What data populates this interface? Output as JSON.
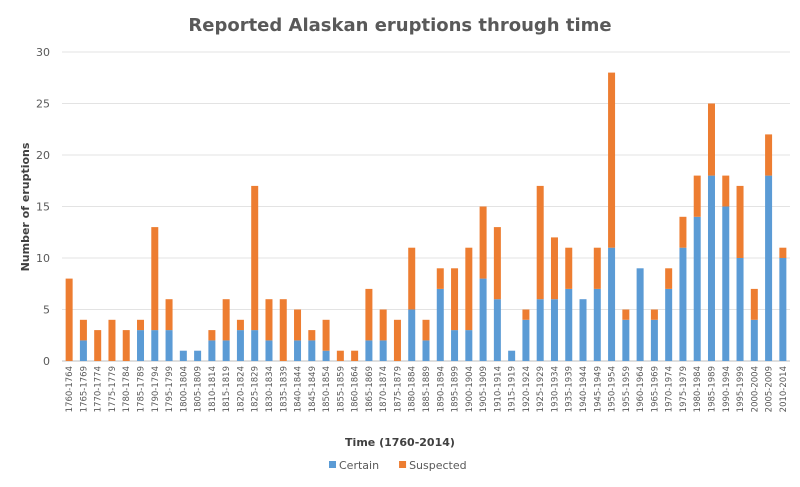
{
  "chart_data": {
    "type": "bar",
    "stacked": true,
    "title": "Reported Alaskan eruptions through time",
    "xlabel": "Time (1760-2014)",
    "ylabel": "Number of eruptions",
    "ylim": [
      0,
      30
    ],
    "yticks": [
      0,
      5,
      10,
      15,
      20,
      25,
      30
    ],
    "grid": true,
    "legend": "bottom",
    "categories": [
      "1760-1764",
      "1765-1769",
      "1770-1774",
      "1775-1779",
      "1780-1784",
      "1785-1789",
      "1790-1794",
      "1795-1799",
      "1800-1804",
      "1805-1809",
      "1810-1814",
      "1815-1819",
      "1820-1824",
      "1825-1829",
      "1830-1834",
      "1835-1839",
      "1840-1844",
      "1845-1849",
      "1850-1854",
      "1855-1859",
      "1860-1864",
      "1865-1869",
      "1870-1874",
      "1875-1879",
      "1880-1884",
      "1885-1889",
      "1890-1894",
      "1895-1899",
      "1900-1904",
      "1905-1909",
      "1910-1914",
      "1915-1919",
      "1920-1924",
      "1925-1929",
      "1930-1934",
      "1935-1939",
      "1940-1944",
      "1945-1949",
      "1950-1954",
      "1955-1959",
      "1960-1964",
      "1965-1969",
      "1970-1974",
      "1975-1979",
      "1980-1984",
      "1985-1989",
      "1990-1994",
      "1995-1999",
      "2000-2004",
      "2005-2009",
      "2010-2014"
    ],
    "series": [
      {
        "name": "Certain",
        "color": "#5b9bd5",
        "values": [
          0,
          2,
          0,
          0,
          0,
          3,
          3,
          3,
          1,
          1,
          2,
          2,
          3,
          3,
          2,
          0,
          2,
          2,
          1,
          0,
          0,
          2,
          2,
          0,
          5,
          2,
          7,
          3,
          3,
          8,
          6,
          1,
          4,
          6,
          6,
          7,
          6,
          7,
          11,
          4,
          9,
          4,
          7,
          11,
          14,
          18,
          15,
          10,
          4,
          18,
          10
        ]
      },
      {
        "name": "Suspected",
        "color": "#ed7d31",
        "values": [
          8,
          2,
          3,
          4,
          3,
          1,
          10,
          3,
          0,
          0,
          1,
          4,
          1,
          14,
          4,
          6,
          3,
          1,
          3,
          1,
          1,
          5,
          3,
          4,
          6,
          2,
          2,
          6,
          8,
          7,
          7,
          0,
          1,
          11,
          6,
          4,
          0,
          4,
          17,
          1,
          0,
          1,
          2,
          3,
          4,
          7,
          3,
          7,
          3,
          4,
          1
        ]
      }
    ]
  }
}
